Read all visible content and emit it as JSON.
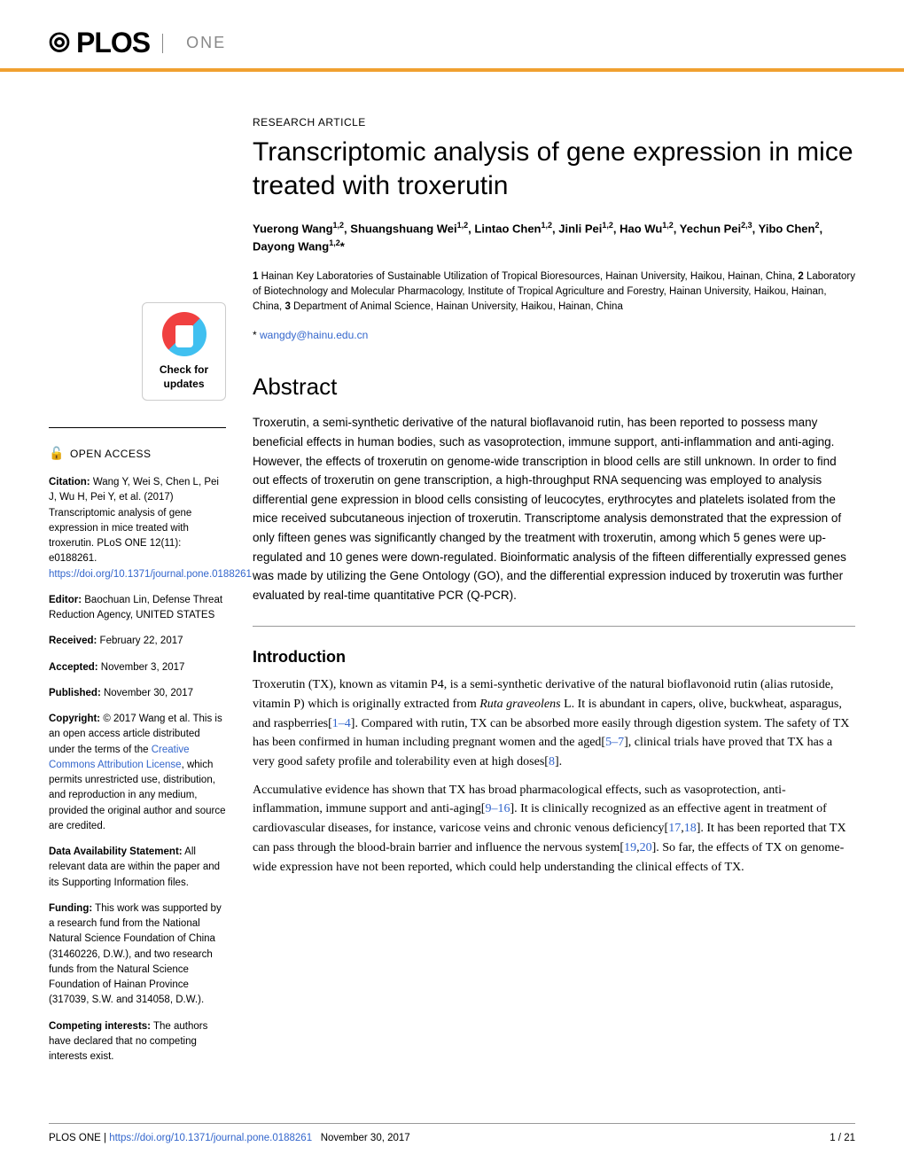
{
  "journal": {
    "brand": "PLOS",
    "name": "ONE"
  },
  "checkUpdates": {
    "line1": "Check for",
    "line2": "updates"
  },
  "sidebar": {
    "openAccess": "OPEN ACCESS",
    "citation": {
      "label": "Citation:",
      "text": " Wang Y, Wei S, Chen L, Pei J, Wu H, Pei Y, et al. (2017) Transcriptomic analysis of gene expression in mice treated with troxerutin. PLoS ONE 12(11): e0188261. ",
      "link": "https://doi.org/10.1371/journal.pone.0188261"
    },
    "editor": {
      "label": "Editor:",
      "text": " Baochuan Lin, Defense Threat Reduction Agency, UNITED STATES"
    },
    "received": {
      "label": "Received:",
      "text": " February 22, 2017"
    },
    "accepted": {
      "label": "Accepted:",
      "text": " November 3, 2017"
    },
    "published": {
      "label": "Published:",
      "text": " November 30, 2017"
    },
    "copyright": {
      "label": "Copyright:",
      "text1": " © 2017 Wang et al. This is an open access article distributed under the terms of the ",
      "link": "Creative Commons Attribution License",
      "text2": ", which permits unrestricted use, distribution, and reproduction in any medium, provided the original author and source are credited."
    },
    "dataAvail": {
      "label": "Data Availability Statement:",
      "text": " All relevant data are within the paper and its Supporting Information files."
    },
    "funding": {
      "label": "Funding:",
      "text": " This work was supported by a research fund from the National Natural Science Foundation of China (31460226, D.W.), and two research funds from the Natural Science Foundation of Hainan Province (317039, S.W. and 314058, D.W.)."
    },
    "competing": {
      "label": "Competing interests:",
      "text": " The authors have declared that no competing interests exist."
    }
  },
  "article": {
    "type": "RESEARCH ARTICLE",
    "title": "Transcriptomic analysis of gene expression in mice treated with troxerutin",
    "affiliations": "1 Hainan Key Laboratories of Sustainable Utilization of Tropical Bioresources, Hainan University, Haikou, Hainan, China, 2 Laboratory of Biotechnology and Molecular Pharmacology, Institute of Tropical Agriculture and Forestry, Hainan University, Haikou, Hainan, China, 3 Department of Animal Science, Hainan University, Haikou, Hainan, China",
    "email": "wangdy@hainu.edu.cn",
    "abstractHeading": "Abstract",
    "abstract": "Troxerutin, a semi-synthetic derivative of the natural bioflavanoid rutin, has been reported to possess many beneficial effects in human bodies, such as vasoprotection, immune support, anti-inflammation and anti-aging. However, the effects of troxerutin on genome-wide transcription in blood cells are still unknown. In order to find out effects of troxerutin on gene transcription, a high-throughput RNA sequencing was employed to analysis differential gene expression in blood cells consisting of leucocytes, erythrocytes and platelets isolated from the mice received subcutaneous injection of troxerutin. Transcriptome analysis demonstrated that the expression of only fifteen genes was significantly changed by the treatment with troxerutin, among which 5 genes were up-regulated and 10 genes were down-regulated. Bioinformatic analysis of the fifteen differentially expressed genes was made by utilizing the Gene Ontology (GO), and the differential expression induced by troxerutin was further evaluated by real-time quantitative PCR (Q-PCR).",
    "introHeading": "Introduction"
  },
  "footer": {
    "journal": "PLOS ONE | ",
    "doi": "https://doi.org/10.1371/journal.pone.0188261",
    "date": "November 30, 2017",
    "page": "1 / 21"
  }
}
